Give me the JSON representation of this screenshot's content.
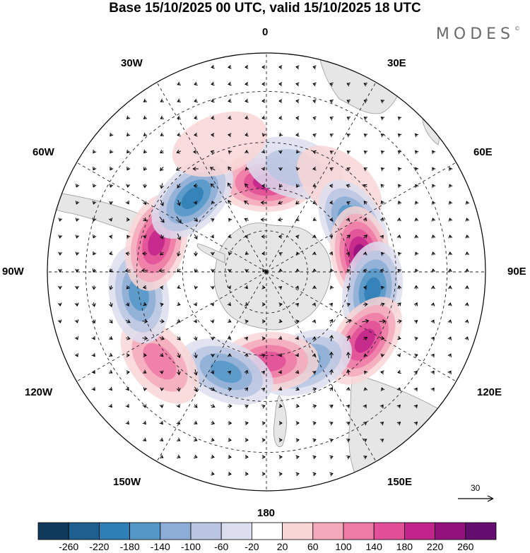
{
  "title": "Base 15/10/2025 00 UTC, valid 15/10/2025 18 UTC",
  "brand": "MODES",
  "brand_mark": "©",
  "longitude_labels": {
    "top": "0",
    "w30": "30W",
    "e30": "30E",
    "w60": "60W",
    "e60": "60E",
    "w90": "90W",
    "e90": "90E",
    "w120": "120W",
    "e120": "120E",
    "w150": "150W",
    "e150": "150E",
    "bottom": "180"
  },
  "vector_scale": {
    "label": "30"
  },
  "colorbar": {
    "ticks": [
      "-260",
      "-220",
      "-180",
      "-140",
      "-100",
      "-60",
      "-20",
      "20",
      "60",
      "100",
      "140",
      "180",
      "220",
      "260"
    ],
    "colors": [
      "#0f3a5c",
      "#1f5f8f",
      "#2e7fb5",
      "#5498c8",
      "#8caed6",
      "#b9c5e2",
      "#dcdeef",
      "#ffffff",
      "#f9d6d6",
      "#f5a9bc",
      "#ee7aa6",
      "#e04f98",
      "#c2248b",
      "#93117d",
      "#640c6f"
    ]
  },
  "anomaly_centers": [
    {
      "lon": 0,
      "lat": -58,
      "value": 180
    },
    {
      "lon": 15,
      "lat": -52,
      "value": -60
    },
    {
      "lon": 40,
      "lat": -50,
      "value": 20
    },
    {
      "lon": 62,
      "lat": -55,
      "value": -180
    },
    {
      "lon": 80,
      "lat": -56,
      "value": 220
    },
    {
      "lon": 100,
      "lat": -52,
      "value": -180
    },
    {
      "lon": 125,
      "lat": -48,
      "value": 180
    },
    {
      "lon": 157,
      "lat": -55,
      "value": -140
    },
    {
      "lon": 178,
      "lat": -58,
      "value": 140
    },
    {
      "lon": -158,
      "lat": -52,
      "value": -140
    },
    {
      "lon": -130,
      "lat": -42,
      "value": 100
    },
    {
      "lon": -100,
      "lat": -45,
      "value": -140
    },
    {
      "lon": -75,
      "lat": -50,
      "value": 180
    },
    {
      "lon": -45,
      "lat": -53,
      "value": -180
    },
    {
      "lon": -20,
      "lat": -43,
      "value": 20
    }
  ]
}
